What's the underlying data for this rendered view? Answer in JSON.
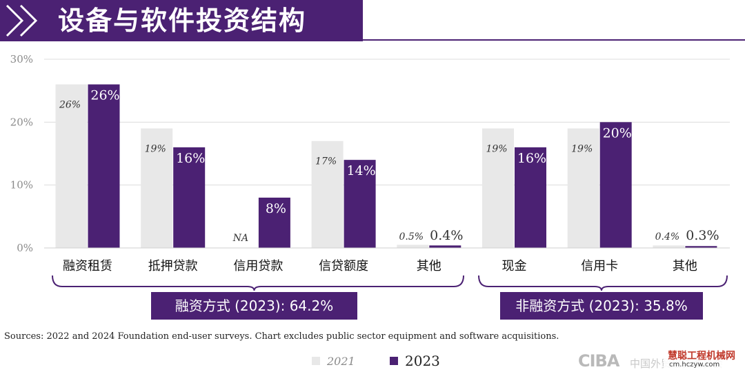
{
  "header": {
    "title": "设备与软件投资结构"
  },
  "chart_data": {
    "type": "bar",
    "categories": [
      "融资租赁",
      "抵押贷款",
      "信用贷款",
      "信贷额度",
      "其他",
      "现金",
      "信用卡",
      "其他"
    ],
    "series": [
      {
        "name": "2021",
        "values": [
          26,
          19,
          null,
          17,
          0.5,
          19,
          19,
          0.4
        ],
        "labels": [
          "26%",
          "19%",
          "NA",
          "17%",
          "0.5%",
          "19%",
          "19%",
          "0.4%"
        ]
      },
      {
        "name": "2023",
        "values": [
          26,
          16,
          8,
          14,
          0.4,
          16,
          20,
          0.3
        ],
        "labels": [
          "26%",
          "16%",
          "8%",
          "14%",
          "0.4%",
          "16%",
          "20%",
          "0.3%"
        ]
      }
    ],
    "ylim": [
      0,
      30
    ],
    "yticks": [
      "0%",
      "10%",
      "20%",
      "30%"
    ],
    "colors": {
      "2021": "#e8e8e8",
      "2023": "#4b2173"
    },
    "groups": [
      {
        "label": "融资方式 (2023): 64.2%",
        "categories": [
          0,
          4
        ]
      },
      {
        "label": "非融资方式 (2023): 35.8%",
        "categories": [
          5,
          7
        ]
      }
    ],
    "grid": true,
    "legend": "bottom"
  },
  "source": "Sources: 2022 and 2024 Foundation end-user surveys. Chart excludes public sector equipment and software acquisitions.",
  "legend": {
    "a": "2021",
    "b": "2023"
  },
  "watermark": {
    "logo": "CIBA",
    "org": "中国外贸租赁委员会",
    "site_name": "慧聪工程机械网",
    "site_url": "cm.hczyw.com"
  }
}
